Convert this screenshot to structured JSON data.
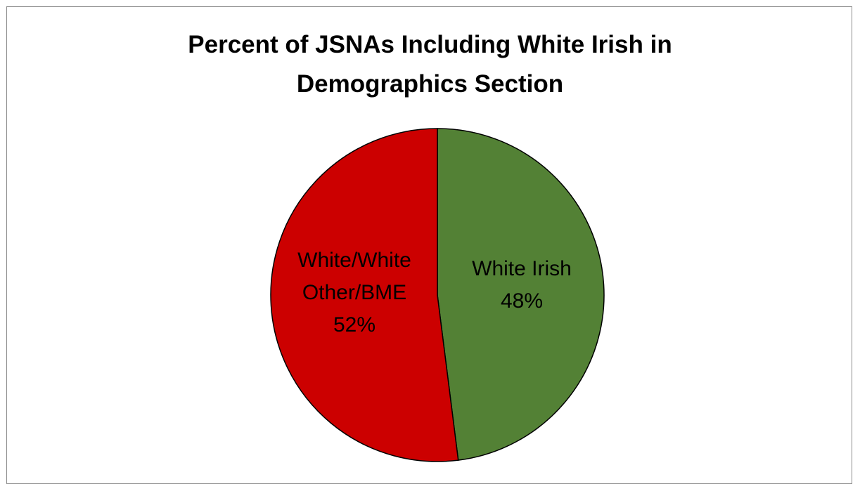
{
  "chart_data": {
    "type": "pie",
    "title_lines": [
      "Percent of JSNAs Including White Irish in",
      "Demographics Section"
    ],
    "slices": [
      {
        "label_lines": [
          "White Irish"
        ],
        "percent_label": "48%",
        "value": 48,
        "color": "#538135"
      },
      {
        "label_lines": [
          "White/White",
          "Other/BME"
        ],
        "percent_label": "52%",
        "value": 52,
        "color": "#cc0000"
      }
    ],
    "start_angle_deg": 0,
    "direction": "clockwise",
    "legend": "none"
  }
}
